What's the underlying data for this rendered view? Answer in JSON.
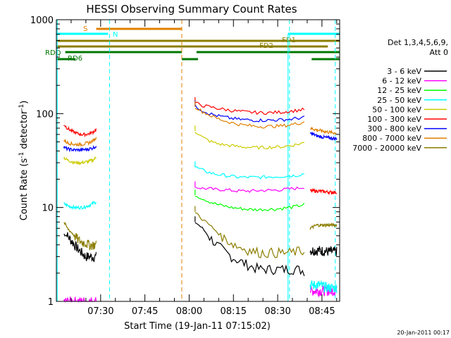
{
  "chart_data": {
    "type": "line",
    "title": "HESSI Observing Summary Count Rates",
    "xlabel": "Start Time (19-Jan-11 07:15:02)",
    "ylabel_main": "Count Rate (s",
    "ylabel_sup": "-1",
    "ylabel_mid": " detector",
    "ylabel_end": ")",
    "yscale": "log",
    "ylim": [
      1,
      1000
    ],
    "xlim_minutes_after_0715": [
      0,
      96
    ],
    "y_ticks": [
      {
        "value": 1,
        "label": "1"
      },
      {
        "value": 10,
        "label": "10"
      },
      {
        "value": 100,
        "label": "100"
      },
      {
        "value": 1000,
        "label": "1000"
      }
    ],
    "x_ticks": [
      {
        "value": 15,
        "label": "07:30"
      },
      {
        "value": 30,
        "label": "07:45"
      },
      {
        "value": 45,
        "label": "08:00"
      },
      {
        "value": 60,
        "label": "08:15"
      },
      {
        "value": 75,
        "label": "08:30"
      },
      {
        "value": 90,
        "label": "08:45"
      }
    ],
    "legend_title_1": "Det 1,3,4,5,6,9,",
    "legend_title_2": "Att 0",
    "legend_placement": "right",
    "series": [
      {
        "name": "3 - 6 keV",
        "color": "#000000",
        "seg1": [
          5.2,
          5.0,
          4.5,
          4.0,
          3.6,
          3.3,
          3.0,
          3.0,
          3.0,
          3.0
        ],
        "seg2": [
          7.0,
          6.0,
          4.8,
          4.0,
          3.4,
          3.0,
          2.7,
          2.5,
          2.3,
          2.2,
          2.2,
          2.2,
          2.2,
          2.2,
          2.2,
          2.1
        ],
        "seg3": [
          3.5,
          3.5,
          3.4,
          3.4
        ]
      },
      {
        "name": "6 - 12 keV",
        "color": "#ff00ff",
        "seg1": [
          1.0,
          1.0,
          1.0
        ],
        "seg2": [
          16.5,
          16.0,
          15.8,
          15.5,
          15.5,
          15.2,
          15.0,
          15.0,
          15.0,
          15.2,
          15.2,
          15.3,
          15.5,
          15.8,
          16.0,
          16.5
        ],
        "seg3": [
          1.3,
          1.3,
          1.3
        ]
      },
      {
        "name": "12 - 25 keV",
        "color": "#00ff00",
        "seg1": [],
        "seg2": [
          13.5,
          12.5,
          11.5,
          10.8,
          10.4,
          10.0,
          9.8,
          9.6,
          9.5,
          9.5,
          9.6,
          9.6,
          9.8,
          10.0,
          10.3,
          10.8
        ],
        "seg3": []
      },
      {
        "name": "25 - 50 keV",
        "color": "#00ffff",
        "seg1": [
          11.0,
          10.5,
          10.2,
          10.0,
          10.0,
          10.0,
          10.2,
          10.5,
          11.0,
          11.5
        ],
        "seg2": [
          27.0,
          25.0,
          23.5,
          22.5,
          22.0,
          21.5,
          21.0,
          21.0,
          21.0,
          21.0,
          21.2,
          21.3,
          21.5,
          21.8,
          22.0,
          23.0
        ],
        "seg3": [
          1.5,
          1.5,
          1.4,
          1.4
        ]
      },
      {
        "name": "50 - 100 keV",
        "color": "#cccc00",
        "seg1": [
          34.0,
          32.0,
          31.0,
          30.0,
          30.0,
          30.0,
          30.5,
          31.0,
          32.0,
          34.0
        ],
        "seg2": [
          65.0,
          56.0,
          51.0,
          48.0,
          46.5,
          45.5,
          44.5,
          44.0,
          43.5,
          43.5,
          43.8,
          44.0,
          44.5,
          45.5,
          47.0,
          49.0
        ],
        "seg3": []
      },
      {
        "name": "100 - 300 keV",
        "color": "#ff0000",
        "seg1": [
          77.0,
          70.0,
          66.0,
          63.0,
          61.0,
          60.0,
          60.0,
          61.0,
          63.0,
          68.0
        ],
        "seg2": [
          130.0,
          122.0,
          118.0,
          114.0,
          111.0,
          108.0,
          106.0,
          104.0,
          103.0,
          102.0,
          102.0,
          103.0,
          104.0,
          106.0,
          108.0,
          111.0
        ],
        "seg3": [
          15.0,
          15.0,
          14.6,
          14.5
        ]
      },
      {
        "name": "300 - 800 keV",
        "color": "#0000ff",
        "seg1": [
          44.0,
          42.0,
          41.5,
          41.0,
          41.0,
          41.0,
          41.5,
          42.0,
          43.0,
          45.0
        ],
        "seg2": [
          120.0,
          108.0,
          100.0,
          95.0,
          92.0,
          89.0,
          87.0,
          86.0,
          85.0,
          85.0,
          85.0,
          85.5,
          86.0,
          87.0,
          89.0,
          91.0
        ],
        "seg3": [
          62.0,
          58.0,
          56.0,
          55.0,
          54.0
        ]
      },
      {
        "name": "800 - 7000 keV",
        "color": "#e08000",
        "seg1": [
          52.0,
          49.0,
          48.0,
          47.0,
          47.0,
          47.0,
          48.0,
          49.0,
          51.0,
          55.0
        ],
        "seg2": [
          118.0,
          105.0,
          96.0,
          89.0,
          84.0,
          80.0,
          77.0,
          75.0,
          74.0,
          73.0,
          73.0,
          73.5,
          74.0,
          76.0,
          78.0,
          82.0
        ],
        "seg3": [
          70.0,
          67.0,
          65.0,
          63.0,
          62.0
        ]
      },
      {
        "name": "7000 - 20000 keV",
        "color": "#8b7d00",
        "seg1": [
          7.0,
          6.0,
          5.5,
          5.0,
          4.5,
          4.3,
          4.2,
          4.0,
          4.0,
          4.0
        ],
        "seg2": [
          9.0,
          7.5,
          6.5,
          5.5,
          4.7,
          4.2,
          3.8,
          3.6,
          3.4,
          3.3,
          3.3,
          3.3,
          3.3,
          3.3,
          3.4,
          3.4
        ],
        "seg3": [
          6.0,
          6.5,
          6.5,
          6.5,
          6.5
        ]
      }
    ],
    "flag_bars": [
      {
        "label": "S",
        "color": "#e08000",
        "start": 14,
        "end": 43
      },
      {
        "label": "N",
        "color": "#00ffff",
        "start": 0,
        "end": 20
      },
      {
        "label": "FD1",
        "color": "#8b7d00",
        "start": 0,
        "end": 96
      },
      {
        "label": "FD2",
        "color": "#8b7d00",
        "start": 0,
        "end": 92
      },
      {
        "label": "RDQ",
        "color": "#007700",
        "start": 3,
        "end": 96
      },
      {
        "label": "RD6",
        "color": "#007700",
        "start": 0,
        "end": 96
      }
    ],
    "date_stamp": "20-Jan-2011 00:17"
  }
}
